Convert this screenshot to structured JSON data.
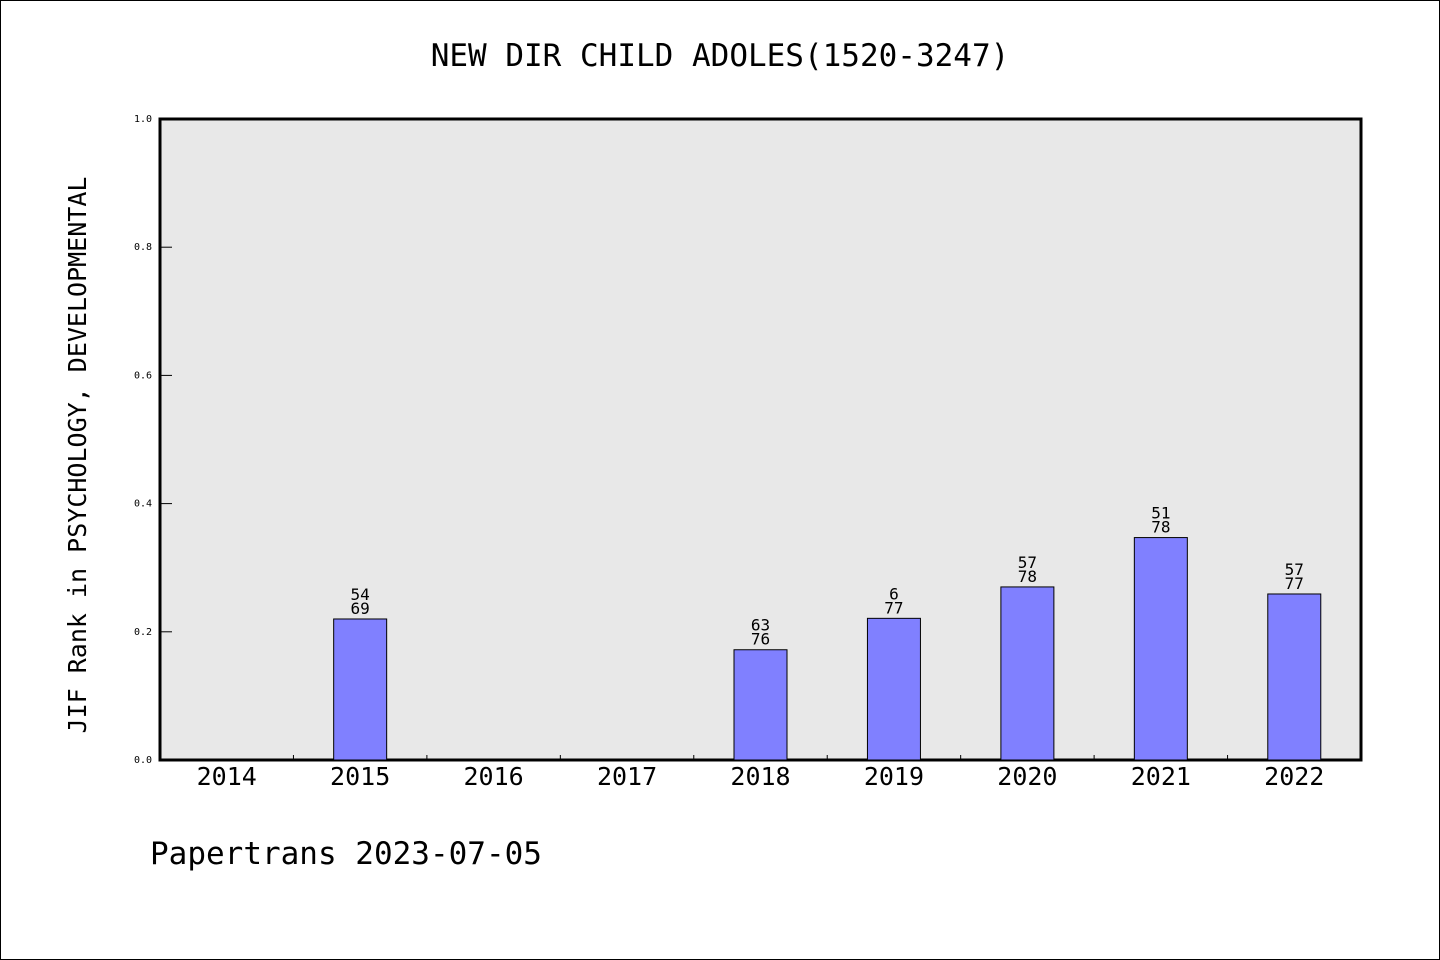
{
  "chart_data": {
    "type": "bar",
    "title": "NEW DIR CHILD ADOLES(1520-3247)",
    "ylabel": "JIF Rank in PSYCHOLOGY, DEVELOPMENTAL",
    "xlabel": "",
    "ylim": [
      0.0,
      1.0
    ],
    "yticks": [
      "0.0",
      "0.2",
      "0.4",
      "0.6",
      "0.8",
      "1.0"
    ],
    "grid": false,
    "categories": [
      "2014",
      "2015",
      "2016",
      "2017",
      "2018",
      "2019",
      "2020",
      "2021",
      "2022"
    ],
    "values": [
      null,
      0.22,
      null,
      null,
      0.172,
      0.221,
      0.27,
      0.347,
      0.259
    ],
    "labels_top": [
      "",
      "54",
      "",
      "",
      "63",
      "6",
      "57",
      "51",
      "57"
    ],
    "labels_bottom": [
      "",
      "69",
      "",
      "",
      "76",
      "77",
      "78",
      "78",
      "77"
    ],
    "bar_color": "#8080ff",
    "plot_background": "#e8e8e8"
  },
  "footer": "Papertrans 2023-07-05"
}
